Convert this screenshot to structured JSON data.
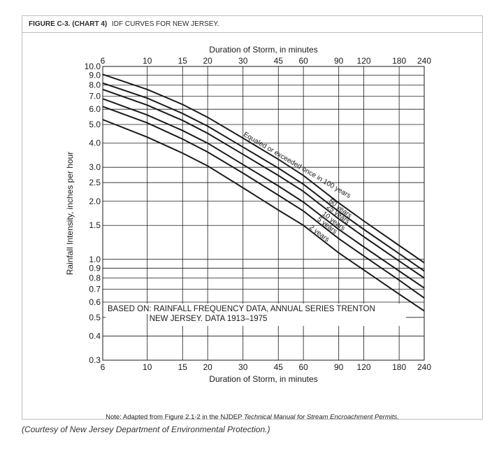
{
  "figure": {
    "label": "FIGURE C-3. (CHART 4)",
    "title": "IDF CURVES FOR NEW JERSEY.",
    "note_prefix": "Note: Adapted from Figure 2.1-2 in the NJDEP ",
    "note_italic": "Technical Manual for Stream Encroachment Permits",
    "note_suffix": ".",
    "credit": "(Courtesy of New Jersey Department of Environmental Protection.)"
  },
  "chart_data": {
    "type": "line",
    "xlabel": "Duration of Storm, in minutes",
    "ylabel": "Rainfall Intensity, inches per hour",
    "x_scale": "log",
    "y_scale": "log",
    "xlim": [
      6,
      240
    ],
    "ylim": [
      0.3,
      10.0
    ],
    "x_ticks": [
      6,
      10,
      15,
      20,
      30,
      45,
      60,
      90,
      120,
      180,
      240
    ],
    "x_tick_labels": [
      "6",
      "10",
      "15",
      "20",
      "30",
      "45",
      "60",
      "90",
      "120",
      "180",
      "240"
    ],
    "y_ticks": [
      0.3,
      0.4,
      0.5,
      0.6,
      0.7,
      0.8,
      0.9,
      1.0,
      1.5,
      2.0,
      2.5,
      3.0,
      4.0,
      5.0,
      6.0,
      7.0,
      8.0,
      9.0,
      10.0
    ],
    "y_tick_labels": [
      "0.3",
      "0.4",
      "0.5",
      "0.6",
      "0.7",
      "0.8",
      "0.9",
      "1.0",
      "1.5",
      "2.0",
      "2.5",
      "3.0",
      "4.0",
      "5.0",
      "6.0",
      "7.0",
      "8.0",
      "9.0",
      "10.0"
    ],
    "grid": true,
    "annotation_lines": [
      "BASED ON: RAINFALL FREQUENCY DATA, ANNUAL SERIES TRENTON",
      "NEW JERSEY. DATA 1913–1975"
    ],
    "curve_label_main": "Equaled or exceeded once in 100 years",
    "series": [
      {
        "label": "2 years",
        "x": [
          6,
          10,
          15,
          20,
          30,
          45,
          60,
          90,
          120,
          180,
          240
        ],
        "y": [
          5.3,
          4.3,
          3.55,
          3.05,
          2.35,
          1.8,
          1.5,
          1.08,
          0.88,
          0.66,
          0.54
        ]
      },
      {
        "label": "5 years",
        "x": [
          6,
          10,
          15,
          20,
          30,
          45,
          60,
          90,
          120,
          180,
          240
        ],
        "y": [
          6.2,
          5.1,
          4.2,
          3.6,
          2.8,
          2.15,
          1.78,
          1.28,
          1.04,
          0.78,
          0.63
        ]
      },
      {
        "label": "10 years",
        "x": [
          6,
          10,
          15,
          20,
          30,
          45,
          60,
          90,
          120,
          180,
          240
        ],
        "y": [
          6.8,
          5.6,
          4.65,
          4.0,
          3.1,
          2.4,
          1.98,
          1.43,
          1.16,
          0.87,
          0.71
        ]
      },
      {
        "label": "25 years",
        "x": [
          6,
          10,
          15,
          20,
          30,
          45,
          60,
          90,
          120,
          180,
          240
        ],
        "y": [
          7.6,
          6.3,
          5.25,
          4.5,
          3.5,
          2.72,
          2.25,
          1.62,
          1.31,
          0.98,
          0.8
        ]
      },
      {
        "label": "50 years",
        "x": [
          6,
          10,
          15,
          20,
          30,
          45,
          60,
          90,
          120,
          180,
          240
        ],
        "y": [
          8.2,
          6.85,
          5.7,
          4.9,
          3.82,
          2.97,
          2.45,
          1.77,
          1.43,
          1.07,
          0.87
        ]
      },
      {
        "label": "100 years",
        "x": [
          6,
          10,
          15,
          20,
          30,
          45,
          60,
          90,
          120,
          180,
          240
        ],
        "y": [
          9.1,
          7.6,
          6.35,
          5.45,
          4.25,
          3.3,
          2.72,
          1.96,
          1.58,
          1.18,
          0.96
        ]
      }
    ]
  }
}
